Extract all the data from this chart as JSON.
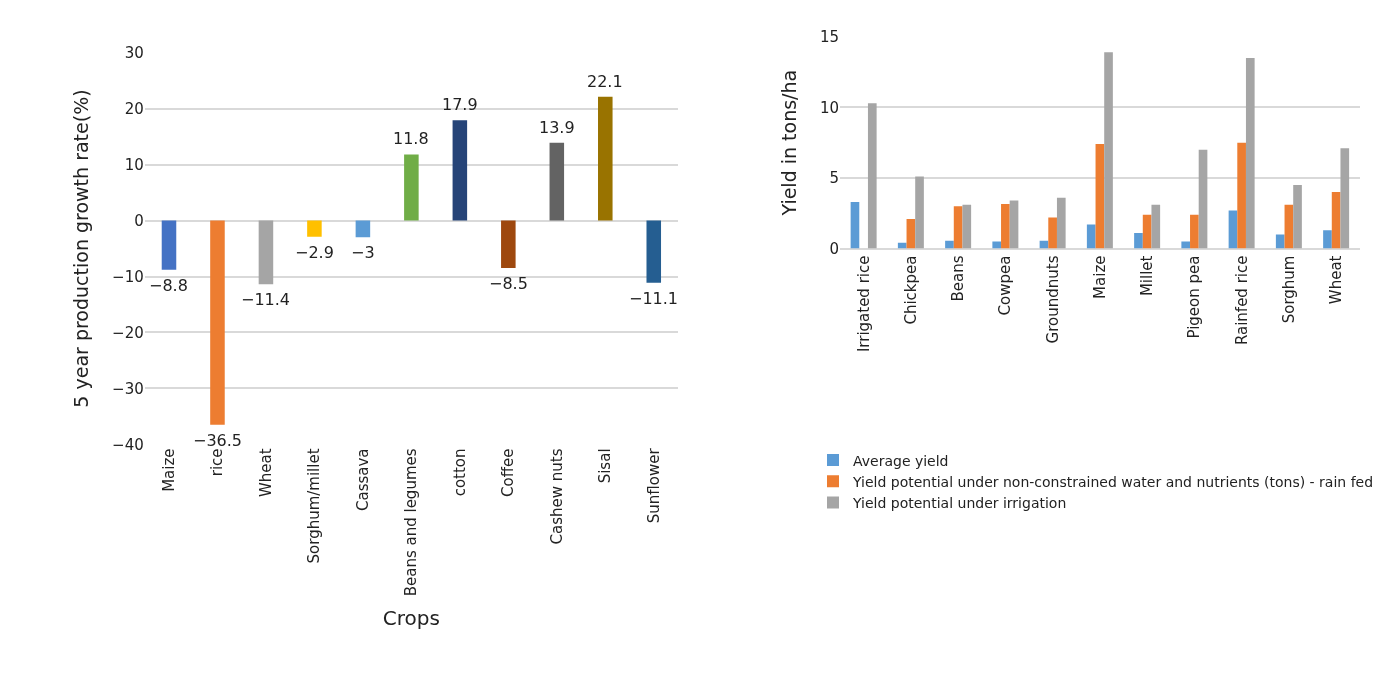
{
  "chart_data": [
    {
      "type": "bar",
      "xlabel": "Crops",
      "ylabel": "5 year production growth rate(%)",
      "categories": [
        "Maize",
        "rice",
        "Wheat",
        "Sorghum/millet",
        "Cassava",
        "Beans and legumes",
        "cotton",
        "Coffee",
        "Cashew nuts",
        "Sisal",
        "Sunflower"
      ],
      "values": [
        -8.8,
        -36.5,
        -11.4,
        -2.9,
        -3,
        11.8,
        17.9,
        -8.5,
        13.9,
        22.1,
        -11.1
      ],
      "colors": [
        "#4472c4",
        "#ed7d31",
        "#a5a5a5",
        "#ffc000",
        "#5b9bd5",
        "#70ad47",
        "#264478",
        "#9e480e",
        "#636363",
        "#997300",
        "#255e91"
      ],
      "data_labels": true,
      "ylim": [
        -40,
        30
      ],
      "yticks": [
        -40,
        -30,
        -20,
        -10,
        0,
        10,
        20,
        30
      ],
      "grid": "y",
      "legend": false
    },
    {
      "type": "bar",
      "ylabel": "Yield in tons/ha",
      "categories": [
        "Irrigated rice",
        "Chickpea",
        "Beans",
        "Cowpea",
        "Groundnuts",
        "Maize",
        "Millet",
        "Pigeon pea",
        "Rainfed rice",
        "Sorghum",
        "Wheat"
      ],
      "series": [
        {
          "name": "Average yield",
          "color": "#5b9bd5",
          "values": [
            3.3,
            0.4,
            0.55,
            0.5,
            0.55,
            1.7,
            1.1,
            0.5,
            2.7,
            1.0,
            1.3
          ]
        },
        {
          "name": "Yield potential under non-constrained water and nutrients (tons) - rain fed",
          "color": "#ed7d31",
          "values": [
            null,
            2.1,
            3.0,
            3.15,
            2.2,
            7.4,
            2.4,
            2.4,
            7.5,
            3.1,
            4.0
          ]
        },
        {
          "name": "Yield potential under irrigation",
          "color": "#a5a5a5",
          "values": [
            10.3,
            5.1,
            3.1,
            3.4,
            3.6,
            13.9,
            3.1,
            7.0,
            13.5,
            4.5,
            7.1
          ]
        }
      ],
      "ylim": [
        0,
        15
      ],
      "yticks": [
        0,
        5,
        10,
        15
      ],
      "grid": "y",
      "legend": "bottom"
    }
  ]
}
